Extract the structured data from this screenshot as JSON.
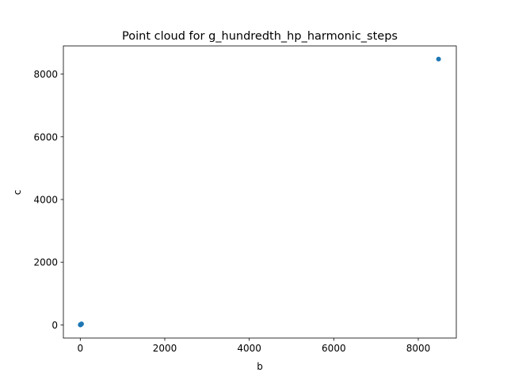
{
  "chart_data": {
    "type": "scatter",
    "title": "Point cloud for g_hundredth_hp_harmonic_steps",
    "xlabel": "b",
    "ylabel": "c",
    "xlim": [
      -400,
      8900
    ],
    "ylim": [
      -420,
      8900
    ],
    "xticks": [
      0,
      2000,
      4000,
      6000,
      8000
    ],
    "yticks": [
      0,
      2000,
      4000,
      6000,
      8000
    ],
    "xtick_labels": [
      "0",
      "2000",
      "4000",
      "6000",
      "8000"
    ],
    "ytick_labels": [
      "0",
      "2000",
      "4000",
      "6000",
      "8000"
    ],
    "grid": false,
    "marker_color": "#1f77b4",
    "series": [
      {
        "x": [
          1,
          2,
          3,
          5,
          8,
          10,
          12,
          15,
          20,
          25,
          30,
          8480
        ],
        "y": [
          1,
          2,
          3,
          5,
          8,
          10,
          12,
          15,
          20,
          25,
          30,
          8480
        ]
      }
    ]
  }
}
